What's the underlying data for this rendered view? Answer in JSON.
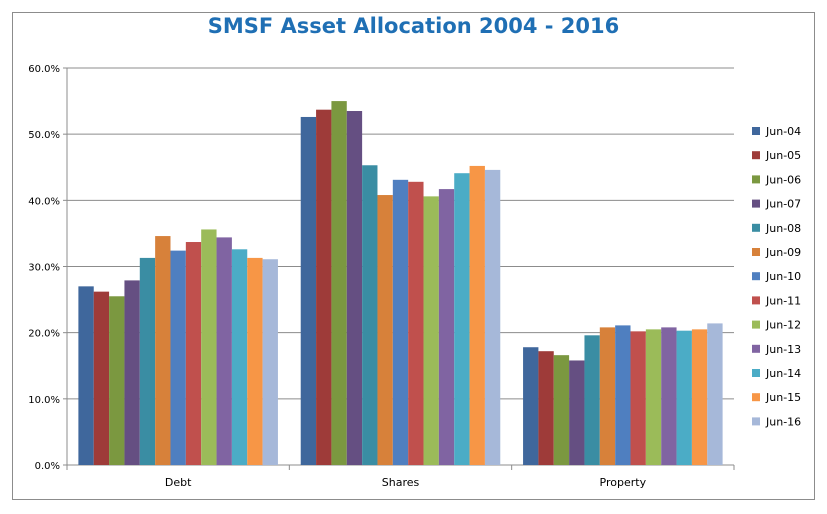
{
  "chart_data": {
    "type": "bar",
    "title": "SMSF Asset Allocation 2004 - 2016",
    "categories": [
      "Debt",
      "Shares",
      "Property"
    ],
    "ylim": [
      0,
      60
    ],
    "yticks": [
      "0.0%",
      "10.0%",
      "20.0%",
      "30.0%",
      "40.0%",
      "50.0%",
      "60.0%"
    ],
    "grid": true,
    "legend_position": "right",
    "series": [
      {
        "name": "Jun-04",
        "color": "#3f679c",
        "values": [
          27.0,
          52.6,
          17.8
        ]
      },
      {
        "name": "Jun-05",
        "color": "#9e3b39",
        "values": [
          26.2,
          53.7,
          17.2
        ]
      },
      {
        "name": "Jun-06",
        "color": "#7b9840",
        "values": [
          25.5,
          55.0,
          16.6
        ]
      },
      {
        "name": "Jun-07",
        "color": "#654f82",
        "values": [
          27.9,
          53.5,
          15.8
        ]
      },
      {
        "name": "Jun-08",
        "color": "#3a8da3",
        "values": [
          31.3,
          45.3,
          19.6
        ]
      },
      {
        "name": "Jun-09",
        "color": "#d7813a",
        "values": [
          34.6,
          40.8,
          20.8
        ]
      },
      {
        "name": "Jun-10",
        "color": "#4f7fc0",
        "values": [
          32.4,
          43.1,
          21.1
        ]
      },
      {
        "name": "Jun-11",
        "color": "#c0504d",
        "values": [
          33.7,
          42.8,
          20.2
        ]
      },
      {
        "name": "Jun-12",
        "color": "#9bbb59",
        "values": [
          35.6,
          40.6,
          20.5
        ]
      },
      {
        "name": "Jun-13",
        "color": "#8064a2",
        "values": [
          34.4,
          41.7,
          20.8
        ]
      },
      {
        "name": "Jun-14",
        "color": "#4bacc6",
        "values": [
          32.6,
          44.1,
          20.3
        ]
      },
      {
        "name": "Jun-15",
        "color": "#f79646",
        "values": [
          31.3,
          45.2,
          20.5
        ]
      },
      {
        "name": "Jun-16",
        "color": "#a6b8d9",
        "values": [
          31.1,
          44.6,
          21.4
        ]
      }
    ]
  }
}
